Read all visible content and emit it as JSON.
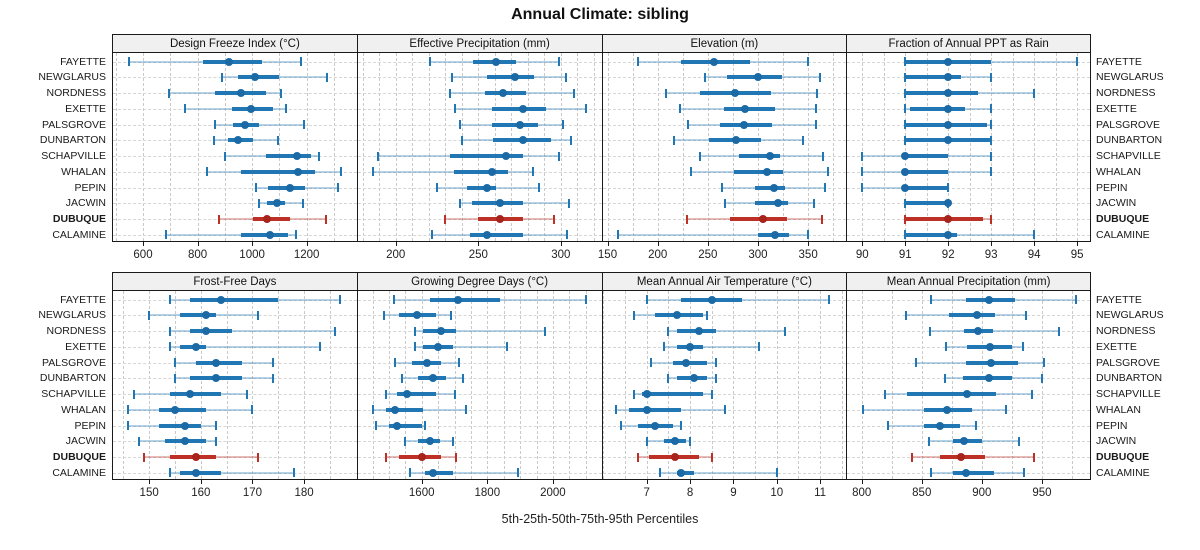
{
  "title": "Annual Climate: sibling",
  "caption": "5th-25th-50th-75th-95th Percentiles",
  "chart_data": {
    "type": "scatter",
    "variant": "percentile-interval-dotplot",
    "title": "Annual Climate: sibling",
    "caption": "5th-25th-50th-75th-95th Percentiles",
    "percentiles": [
      5,
      25,
      50,
      75,
      95
    ],
    "legend_position": "none",
    "grid_on": true,
    "rows": [
      "FAYETTE",
      "NEWGLARUS",
      "NORDNESS",
      "EXETTE",
      "PALSGROVE",
      "DUNBARTON",
      "SCHAPVILLE",
      "WHALAN",
      "PEPIN",
      "JACWIN",
      "DUBUQUE",
      "CALAMINE"
    ],
    "highlight_row": "DUBUQUE",
    "colors": {
      "series_solid": "#2077b4",
      "series_light": "rgba(32,119,180,0.33)",
      "series_dot": "#1b6aa5",
      "highlight_solid": "#bd3026",
      "highlight_light": "rgba(189,48,38,0.33)",
      "highlight_dot": "#a8231b",
      "strip_bg": "#f0f0f0",
      "frame": "#1a1a1a"
    },
    "panels": [
      {
        "title": "Design Freeze Index (°C)",
        "xlim": [
          490,
          1380
        ],
        "ticks": [
          600,
          800,
          1000,
          1200
        ],
        "grid": {
          "start": 500,
          "step": 100,
          "end": 1300
        },
        "values": [
          [
            550,
            820,
            915,
            1035,
            1180
          ],
          [
            890,
            950,
            1010,
            1100,
            1275
          ],
          [
            695,
            865,
            960,
            1050,
            1105
          ],
          [
            755,
            925,
            995,
            1075,
            1125
          ],
          [
            865,
            930,
            975,
            1025,
            1190
          ],
          [
            860,
            910,
            950,
            1005,
            1095
          ],
          [
            900,
            1050,
            1165,
            1215,
            1245
          ],
          [
            835,
            960,
            1170,
            1230,
            1325
          ],
          [
            1015,
            1060,
            1140,
            1195,
            1315
          ],
          [
            1025,
            1055,
            1090,
            1120,
            1185
          ],
          [
            880,
            1005,
            1055,
            1140,
            1270
          ],
          [
            685,
            960,
            1065,
            1130,
            1160
          ]
        ]
      },
      {
        "title": "Effective Precipitation (mm)",
        "xlim": [
          177,
          324
        ],
        "ticks": [
          200,
          250,
          300
        ],
        "grid": {
          "start": 180,
          "step": 10,
          "end": 320
        },
        "values": [
          [
            221,
            247,
            261,
            273,
            299
          ],
          [
            234,
            255,
            272,
            284,
            303
          ],
          [
            233,
            254,
            265,
            279,
            308
          ],
          [
            236,
            258,
            277,
            291,
            315
          ],
          [
            239,
            258,
            275,
            286,
            301
          ],
          [
            240,
            259,
            277,
            294,
            306
          ],
          [
            189,
            233,
            267,
            277,
            299
          ],
          [
            186,
            235,
            258,
            268,
            283
          ],
          [
            225,
            243,
            255,
            261,
            287
          ],
          [
            239,
            246,
            263,
            277,
            305
          ],
          [
            230,
            250,
            263,
            277,
            296
          ],
          [
            222,
            245,
            255,
            277,
            304
          ]
        ]
      },
      {
        "title": "Elevation (m)",
        "xlim": [
          145,
          387
        ],
        "ticks": [
          150,
          200,
          250,
          300,
          350
        ],
        "grid": {
          "start": 150,
          "step": 25,
          "end": 375
        },
        "values": [
          [
            180,
            223,
            256,
            292,
            350
          ],
          [
            247,
            269,
            300,
            324,
            362
          ],
          [
            208,
            242,
            277,
            313,
            359
          ],
          [
            222,
            266,
            287,
            317,
            358
          ],
          [
            230,
            262,
            286,
            314,
            358
          ],
          [
            216,
            251,
            278,
            303,
            345
          ],
          [
            242,
            281,
            312,
            322,
            365
          ],
          [
            233,
            276,
            309,
            325,
            370
          ],
          [
            264,
            297,
            316,
            327,
            367
          ],
          [
            267,
            297,
            320,
            330,
            356
          ],
          [
            229,
            272,
            305,
            329,
            364
          ],
          [
            160,
            300,
            317,
            331,
            350
          ]
        ]
      },
      {
        "title": "Fraction of Annual PPT as Rain",
        "xlim": [
          89.65,
          95.3
        ],
        "ticks": [
          90,
          91,
          92,
          93,
          94,
          95
        ],
        "grid": {
          "start": 90,
          "step": 0.5,
          "end": 95
        },
        "values": [
          [
            91,
            91,
            92,
            93,
            95
          ],
          [
            91,
            91,
            92,
            92.3,
            93
          ],
          [
            91,
            91,
            92,
            92.7,
            94
          ],
          [
            91,
            91.1,
            92,
            92.4,
            93
          ],
          [
            91,
            91,
            92,
            92.9,
            93
          ],
          [
            91,
            91,
            92,
            93,
            93
          ],
          [
            90,
            91,
            91,
            92,
            93
          ],
          [
            90,
            91,
            91,
            92,
            93
          ],
          [
            90,
            91,
            91,
            92,
            92
          ],
          [
            91,
            91,
            92,
            92,
            92
          ],
          [
            91,
            91,
            92,
            92.8,
            93
          ],
          [
            91,
            91,
            92,
            92.2,
            94
          ]
        ]
      },
      {
        "title": "Frost-Free Days",
        "xlim": [
          143,
          190
        ],
        "ticks": [
          150,
          160,
          170,
          180
        ],
        "grid": {
          "start": 145,
          "step": 5,
          "end": 185
        },
        "values": [
          [
            154,
            158,
            164,
            175,
            187
          ],
          [
            150,
            156,
            161,
            163,
            171
          ],
          [
            154,
            158,
            161,
            166,
            186
          ],
          [
            154,
            156,
            159,
            161,
            183
          ],
          [
            155,
            159,
            163,
            168,
            174
          ],
          [
            155,
            158,
            163,
            168,
            174
          ],
          [
            147,
            154,
            158,
            164,
            169
          ],
          [
            146,
            152,
            155,
            161,
            170
          ],
          [
            146,
            152,
            157,
            160,
            163
          ],
          [
            148,
            153,
            157,
            161,
            163
          ],
          [
            149,
            154,
            159,
            163,
            171
          ],
          [
            154,
            156,
            159,
            164,
            178
          ]
        ]
      },
      {
        "title": "Growing Degree Days (°C)",
        "xlim": [
          1405,
          2145
        ],
        "ticks": [
          1600,
          1800,
          2000
        ],
        "grid": {
          "start": 1450,
          "step": 50,
          "end": 2100
        },
        "values": [
          [
            1515,
            1625,
            1710,
            1840,
            2100
          ],
          [
            1485,
            1530,
            1585,
            1645,
            1690
          ],
          [
            1580,
            1605,
            1660,
            1705,
            1975
          ],
          [
            1580,
            1605,
            1650,
            1695,
            1860
          ],
          [
            1520,
            1570,
            1615,
            1660,
            1715
          ],
          [
            1540,
            1590,
            1635,
            1675,
            1725
          ],
          [
            1490,
            1525,
            1555,
            1645,
            1700
          ],
          [
            1450,
            1490,
            1520,
            1605,
            1735
          ],
          [
            1460,
            1500,
            1525,
            1600,
            1610
          ],
          [
            1550,
            1590,
            1625,
            1655,
            1695
          ],
          [
            1490,
            1530,
            1600,
            1660,
            1705
          ],
          [
            1565,
            1610,
            1635,
            1695,
            1895
          ]
        ]
      },
      {
        "title": "Mean Annual Air Temperature (°C)",
        "xlim": [
          5.98,
          11.58
        ],
        "ticks": [
          7,
          8,
          9,
          10,
          11
        ],
        "grid": {
          "start": 6,
          "step": 0.5,
          "end": 11.5
        },
        "values": [
          [
            7.0,
            7.8,
            8.5,
            9.2,
            11.2
          ],
          [
            6.7,
            7.2,
            7.7,
            8.3,
            8.4
          ],
          [
            7.5,
            7.7,
            8.2,
            8.6,
            10.2
          ],
          [
            7.4,
            7.7,
            8.0,
            8.3,
            9.6
          ],
          [
            7.1,
            7.6,
            7.9,
            8.4,
            8.6
          ],
          [
            7.5,
            7.7,
            8.1,
            8.4,
            8.6
          ],
          [
            6.7,
            6.9,
            7.0,
            8.3,
            8.5
          ],
          [
            6.3,
            6.6,
            7.0,
            7.8,
            8.8
          ],
          [
            6.4,
            6.8,
            7.2,
            7.6,
            7.8
          ],
          [
            7.0,
            7.4,
            7.65,
            7.9,
            8.0
          ],
          [
            6.8,
            7.05,
            7.65,
            8.2,
            8.5
          ],
          [
            7.3,
            7.7,
            7.8,
            8.1,
            10.0
          ]
        ]
      },
      {
        "title": "Mean Annual Precipitation (mm)",
        "xlim": [
          788,
          990
        ],
        "ticks": [
          800,
          850,
          900,
          950
        ],
        "grid": {
          "start": 800,
          "step": 25,
          "end": 975
        },
        "values": [
          [
            858,
            887,
            906,
            928,
            978
          ],
          [
            837,
            873,
            896,
            911,
            937
          ],
          [
            857,
            885,
            897,
            909,
            964
          ],
          [
            870,
            888,
            907,
            925,
            934
          ],
          [
            845,
            887,
            908,
            930,
            952
          ],
          [
            869,
            884,
            906,
            925,
            950
          ],
          [
            819,
            838,
            888,
            912,
            942
          ],
          [
            801,
            852,
            871,
            892,
            920
          ],
          [
            822,
            852,
            865,
            882,
            895
          ],
          [
            856,
            876,
            885,
            900,
            931
          ],
          [
            842,
            865,
            883,
            903,
            943
          ],
          [
            858,
            876,
            887,
            910,
            935
          ]
        ]
      }
    ]
  }
}
